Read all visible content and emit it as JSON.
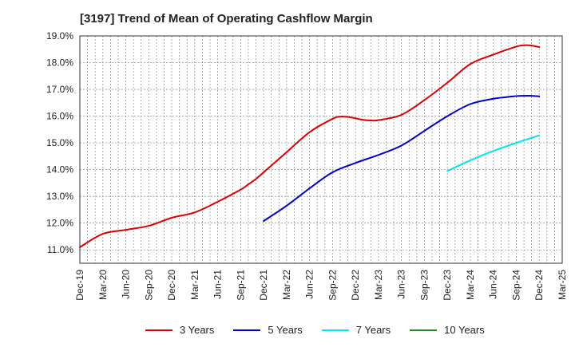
{
  "chart_data": {
    "type": "line",
    "title": "[3197]  Trend of Mean of Operating Cashflow Margin",
    "xlabel": "",
    "ylabel": "",
    "x_ticks": [
      "Dec-19",
      "Mar-20",
      "Jun-20",
      "Sep-20",
      "Dec-20",
      "Mar-21",
      "Jun-21",
      "Sep-21",
      "Dec-21",
      "Mar-22",
      "Jun-22",
      "Sep-22",
      "Dec-22",
      "Mar-23",
      "Jun-23",
      "Sep-23",
      "Dec-23",
      "Mar-24",
      "Jun-24",
      "Sep-24",
      "Dec-24",
      "Mar-25"
    ],
    "y_ticks": [
      "11.0%",
      "12.0%",
      "13.0%",
      "14.0%",
      "15.0%",
      "16.0%",
      "17.0%",
      "18.0%",
      "19.0%"
    ],
    "ylim": [
      10.5,
      19.0
    ],
    "grid": true,
    "legend_position": "bottom",
    "series": [
      {
        "name": "3 Years",
        "color": "#dd0000",
        "x": [
          "Dec-19",
          "Mar-20",
          "Jun-20",
          "Sep-20",
          "Dec-20",
          "Mar-21",
          "Jun-21",
          "Sep-21",
          "Oct-21",
          "Nov-21",
          "Dec-21",
          "Jan-22",
          "Feb-22",
          "Mar-22",
          "Jun-22",
          "Sep-22",
          "Oct-22",
          "Nov-22",
          "Dec-22",
          "Jan-23",
          "Feb-23",
          "Mar-23",
          "Jun-23",
          "Sep-23",
          "Dec-23",
          "Mar-24",
          "Jun-24",
          "Sep-24",
          "Oct-24",
          "Nov-24",
          "Dec-24"
        ],
        "values": [
          11.1,
          11.6,
          11.75,
          11.9,
          12.2,
          12.4,
          12.8,
          13.25,
          13.45,
          13.65,
          13.9,
          14.15,
          14.4,
          14.65,
          15.4,
          15.9,
          15.98,
          15.97,
          15.92,
          15.86,
          15.84,
          15.85,
          16.05,
          16.6,
          17.25,
          17.95,
          18.3,
          18.6,
          18.65,
          18.64,
          18.58
        ]
      },
      {
        "name": "5 Years",
        "color": "#0000cc",
        "x": [
          "Dec-21",
          "Mar-22",
          "Jun-22",
          "Sep-22",
          "Dec-22",
          "Mar-23",
          "Jun-23",
          "Sep-23",
          "Dec-23",
          "Mar-24",
          "Jun-24",
          "Sep-24",
          "Oct-24",
          "Nov-24",
          "Dec-24"
        ],
        "values": [
          12.08,
          12.65,
          13.3,
          13.9,
          14.25,
          14.55,
          14.9,
          15.45,
          16.0,
          16.45,
          16.65,
          16.75,
          16.76,
          16.76,
          16.74
        ]
      },
      {
        "name": "7 Years",
        "color": "#00e5ee",
        "x": [
          "Dec-23",
          "Mar-24",
          "Jun-24",
          "Sep-24",
          "Dec-24"
        ],
        "values": [
          13.95,
          14.35,
          14.7,
          15.0,
          15.28
        ]
      },
      {
        "name": "10 Years",
        "color": "#228b22",
        "x": [],
        "values": []
      }
    ]
  }
}
